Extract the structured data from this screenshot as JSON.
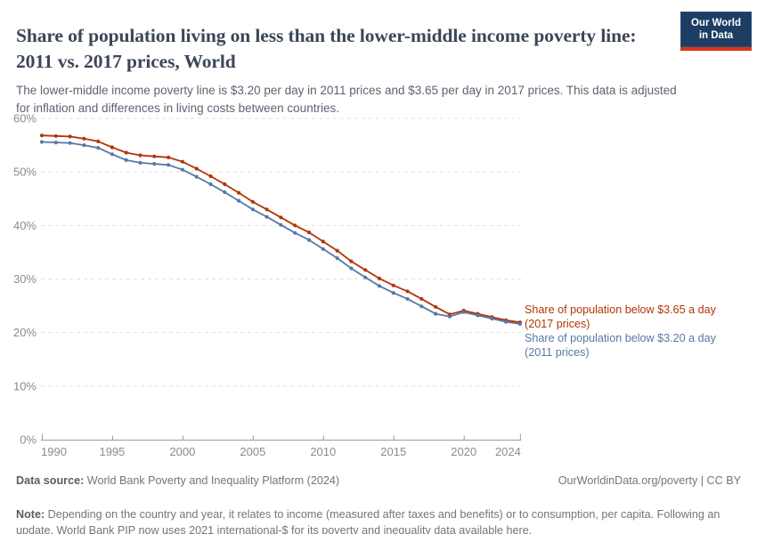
{
  "header": {
    "title": "Share of population living on less than the lower-middle income poverty line: 2011 vs. 2017 prices, World",
    "subtitle": "The lower-middle income poverty line is $3.20 per day in 2011 prices and $3.65 per day in 2017 prices. This data is adjusted for inflation and differences in living costs between countries.",
    "logo": {
      "line1": "Our World",
      "line2": "in Data",
      "bg_color": "#1d3d63",
      "bar_color": "#dc3418"
    }
  },
  "chart_data": {
    "type": "line",
    "title": "Share of population living on less than the lower-middle income poverty line: 2011 vs. 2017 prices, World",
    "xlabel": "",
    "ylabel": "",
    "xlim": [
      1990,
      2024
    ],
    "ylim": [
      0,
      60
    ],
    "grid": "horizontal-dashed",
    "legend_position": "right",
    "x": [
      1990,
      1991,
      1992,
      1993,
      1994,
      1995,
      1996,
      1997,
      1998,
      1999,
      2000,
      2001,
      2002,
      2003,
      2004,
      2005,
      2006,
      2007,
      2008,
      2009,
      2010,
      2011,
      2012,
      2013,
      2014,
      2015,
      2016,
      2017,
      2018,
      2019,
      2020,
      2021,
      2022,
      2023,
      2024
    ],
    "series": [
      {
        "name": "Share of population below $3.65 a day (2017 prices)",
        "color": "#b13507",
        "values": [
          56.8,
          56.7,
          56.6,
          56.2,
          55.7,
          54.6,
          53.6,
          53.1,
          52.9,
          52.7,
          51.9,
          50.6,
          49.2,
          47.7,
          46.1,
          44.4,
          43.0,
          41.5,
          40.0,
          38.7,
          37.0,
          35.3,
          33.3,
          31.7,
          30.1,
          28.8,
          27.7,
          26.3,
          24.8,
          23.4,
          24.1,
          23.5,
          22.9,
          22.3,
          21.9
        ]
      },
      {
        "name": "Share of population below $3.20 a day (2011 prices)",
        "color": "#5878a5",
        "values": [
          55.6,
          55.5,
          55.4,
          55.0,
          54.5,
          53.3,
          52.2,
          51.7,
          51.5,
          51.3,
          50.4,
          49.1,
          47.7,
          46.2,
          44.6,
          43.0,
          41.6,
          40.1,
          38.6,
          37.3,
          35.6,
          33.9,
          32.0,
          30.3,
          28.7,
          27.4,
          26.3,
          24.9,
          23.5,
          23.0,
          23.8,
          23.2,
          22.6,
          22.0,
          21.6
        ]
      }
    ],
    "legend": [
      {
        "line1": "Share of population below $3.65 a day",
        "line2": "(2017 prices)",
        "color": "#b13507"
      },
      {
        "line1": "Share of population below $3.20 a day",
        "line2": "(2011 prices)",
        "color": "#5878a5"
      }
    ],
    "yticks": [
      [
        0,
        "0%"
      ],
      [
        10,
        "10%"
      ],
      [
        20,
        "20%"
      ],
      [
        30,
        "30%"
      ],
      [
        40,
        "40%"
      ],
      [
        50,
        "50%"
      ],
      [
        60,
        "60%"
      ]
    ],
    "xticks": [
      [
        1990,
        "1990"
      ],
      [
        1995,
        "1995"
      ],
      [
        2000,
        "2000"
      ],
      [
        2005,
        "2005"
      ],
      [
        2010,
        "2010"
      ],
      [
        2015,
        "2015"
      ],
      [
        2020,
        "2020"
      ],
      [
        2024,
        "2024"
      ]
    ]
  },
  "footer": {
    "datasource_label": "Data source:",
    "datasource": " World Bank Poverty and Inequality Platform (2024)",
    "attribution": "OurWorldinData.org/poverty | CC BY",
    "note_label": "Note:",
    "note_before_link": " Depending on the country and year, it relates to income (measured after taxes and benefits) or to consumption, per capita. Following an update, World Bank PIP now uses 2021 international-$ for its poverty and inequality data ",
    "note_link": "available here",
    "note_after_link": "."
  }
}
